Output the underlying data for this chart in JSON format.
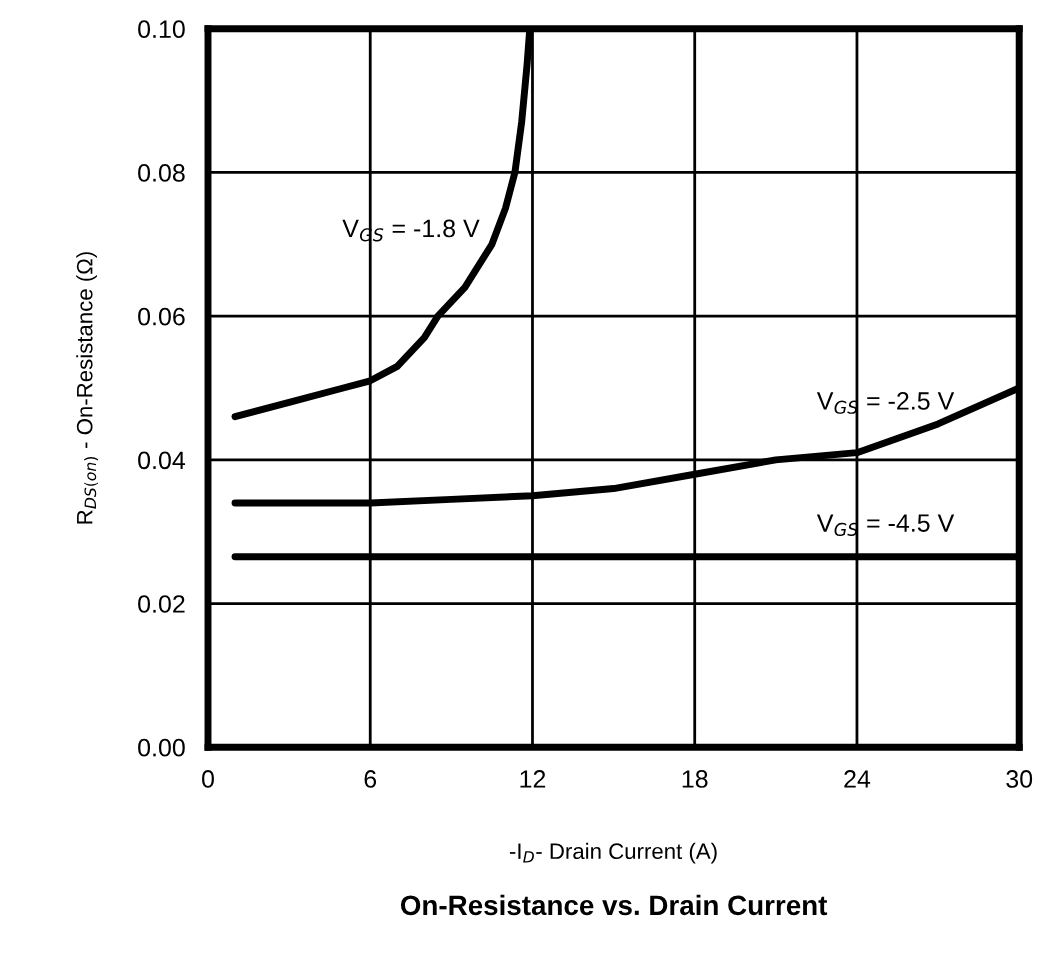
{
  "chart_data": {
    "type": "line",
    "title": "On-Resistance vs. Drain Current",
    "xlabel": "-I$_{D}$- Drain Current (A)",
    "ylabel": "R$_{DS(on)}$ - On-Resistance (Ω)",
    "xlim": [
      0,
      30
    ],
    "ylim": [
      0,
      0.1
    ],
    "xticks": [
      0,
      6,
      12,
      18,
      24,
      30
    ],
    "yticks": [
      {
        "value": 0,
        "label": "0.00"
      },
      {
        "value": 0.02,
        "label": "0.02"
      },
      {
        "value": 0.04,
        "label": "0.04"
      },
      {
        "value": 0.06,
        "label": "0.06"
      },
      {
        "value": 0.08,
        "label": "0.08"
      },
      {
        "value": 0.1,
        "label": "0.10"
      }
    ],
    "grid": true,
    "line_style": "solid",
    "series": [
      {
        "name": "V$_{GS}$ = -1.8 V",
        "color": "#000000",
        "x": [
          1,
          3,
          5,
          6,
          7,
          8,
          8.5,
          9.5,
          10.5,
          11,
          11.35,
          11.6,
          11.8,
          11.9
        ],
        "values": [
          0.046,
          0.048,
          0.05,
          0.051,
          0.053,
          0.057,
          0.06,
          0.064,
          0.07,
          0.075,
          0.08,
          0.087,
          0.095,
          0.1
        ]
      },
      {
        "name": "V$_{GS}$ = -2.5 V",
        "color": "#000000",
        "x": [
          1,
          6,
          9,
          12,
          15,
          18,
          21,
          24,
          27,
          30
        ],
        "values": [
          0.034,
          0.034,
          0.0345,
          0.035,
          0.036,
          0.038,
          0.04,
          0.041,
          0.045,
          0.05
        ]
      },
      {
        "name": "V$_{GS}$ = -4.5 V",
        "color": "#000000",
        "x": [
          1,
          30
        ],
        "values": [
          0.0265,
          0.0265
        ]
      }
    ]
  }
}
